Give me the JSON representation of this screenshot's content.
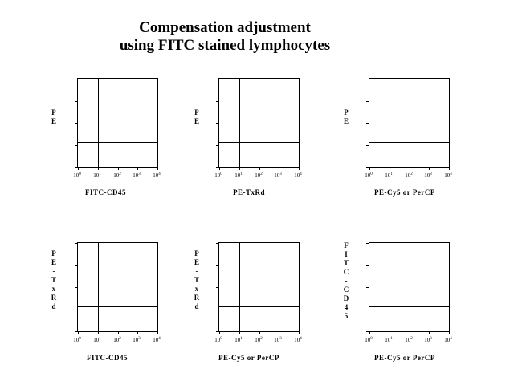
{
  "title": {
    "line1": "Compensation adjustment",
    "line2": "using FITC stained lymphocytes"
  },
  "tick_labels": [
    "10⁰",
    "10¹",
    "10²",
    "10³",
    "10⁴"
  ],
  "tick_exponents": [
    "0",
    "1",
    "2",
    "3",
    "4"
  ],
  "plots": [
    {
      "xlabel": "FITC-CD45",
      "ylabel": "P\nE",
      "gate_x_decade": 1.0,
      "gate_y_fraction": 0.28
    },
    {
      "xlabel": "PE-TxRd",
      "ylabel": "P\nE",
      "gate_x_decade": 1.0,
      "gate_y_fraction": 0.28
    },
    {
      "xlabel": "PE-Cy5 or PerCP",
      "ylabel": "P\nE",
      "gate_x_decade": 1.0,
      "gate_y_fraction": 0.28
    },
    {
      "xlabel": "FITC-CD45",
      "ylabel": "P\nE\n-\nT\nx\nR\nd",
      "gate_x_decade": 1.0,
      "gate_y_fraction": 0.28
    },
    {
      "xlabel": "PE-Cy5 or PerCP",
      "ylabel": "P\nE\n-\nT\nx\nR\nd",
      "gate_x_decade": 1.0,
      "gate_y_fraction": 0.28
    },
    {
      "xlabel": "PE-Cy5 or PerCP",
      "ylabel": "F\nI\nT\nC\n-\nC\nD\n4\n5",
      "gate_x_decade": 1.0,
      "gate_y_fraction": 0.28
    }
  ]
}
